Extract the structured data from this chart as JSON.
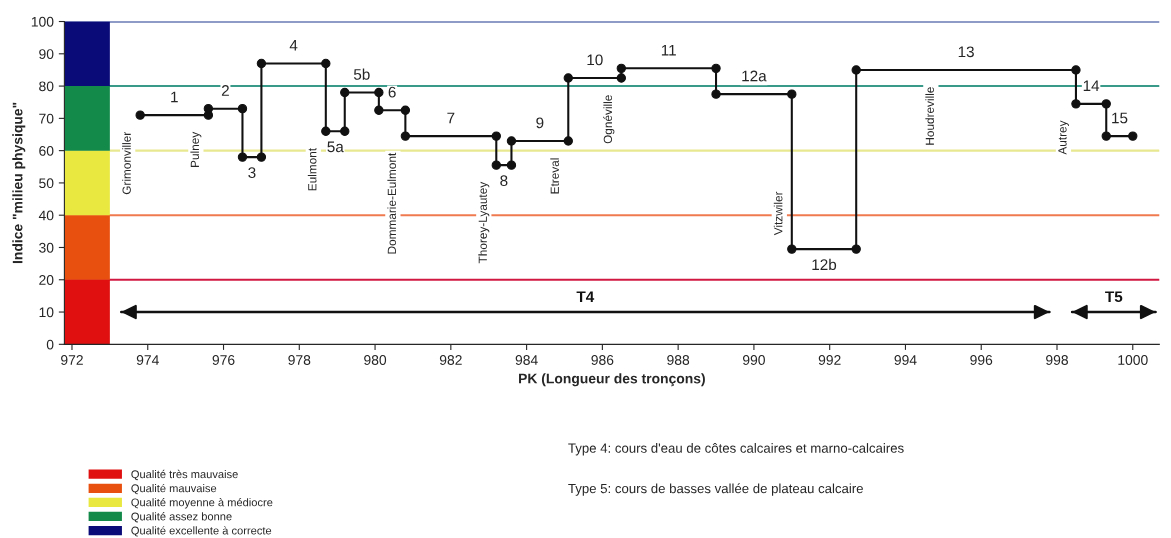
{
  "chart_data": {
    "type": "line",
    "xlabel": "PK (Longueur des tronçons)",
    "ylabel": "Indice \"milieu physique\"",
    "xlim": [
      971.8,
      1000.7
    ],
    "xticks": [
      972,
      974,
      976,
      978,
      980,
      982,
      984,
      986,
      988,
      990,
      992,
      994,
      996,
      998,
      1000
    ],
    "ylim": [
      0,
      100
    ],
    "yticks": [
      0,
      10,
      20,
      30,
      40,
      50,
      60,
      70,
      80,
      90,
      100
    ],
    "legend": "bottom left",
    "marker": "circle",
    "line_style": "solid",
    "stacked": true,
    "series": [
      {
        "type": "bar",
        "name": "Qualité très mauvaise",
        "color": "#e01010",
        "x": [
          972.4
        ],
        "values": [
          20
        ]
      },
      {
        "type": "bar",
        "name": "Qualité mauvaise",
        "color": "#e85010",
        "x": [
          972.4
        ],
        "values": [
          20
        ]
      },
      {
        "type": "bar",
        "name": "Qualité moyenne à médiocre",
        "color": "#e8e840",
        "x": [
          972.4
        ],
        "values": [
          20
        ]
      },
      {
        "type": "bar",
        "name": "Qualité assez bonne",
        "color": "#138a4a",
        "x": [
          972.4
        ],
        "values": [
          20
        ]
      },
      {
        "type": "bar",
        "name": "Qualité excellente à correcte",
        "color": "#0a0a78",
        "x": [
          972.4
        ],
        "values": [
          20
        ]
      },
      {
        "color": "#111111",
        "x": [
          973.8,
          975.6,
          975.6,
          976.5,
          976.5,
          977.0,
          977.0,
          978.7,
          978.7,
          979.2,
          979.2,
          980.1,
          980.1,
          980.8,
          980.8,
          983.2,
          983.2,
          983.6,
          983.6,
          985.1,
          985.1,
          986.5,
          986.5,
          989.0,
          989.0,
          991.0,
          991.0,
          992.7,
          992.7,
          998.5,
          998.5,
          999.3,
          999.3,
          1000.0
        ],
        "values": [
          71,
          71,
          73,
          73,
          58,
          58,
          87,
          87,
          66,
          66,
          78,
          78,
          72.5,
          72.5,
          64.5,
          64.5,
          55.5,
          55.5,
          63,
          63,
          82.5,
          82.5,
          85.5,
          85.5,
          77.5,
          77.5,
          29.5,
          29.5,
          85,
          85,
          74.5,
          74.5,
          64.5,
          64.5
        ]
      },
      {
        "name": "T4",
        "marker": "none",
        "color": "#111111",
        "x": [
          973.3,
          997.8
        ],
        "values": [
          10,
          10
        ]
      },
      {
        "name": "T5",
        "marker": "none",
        "color": "#111111",
        "x": [
          998.4,
          1000.6
        ],
        "values": [
          10,
          10
        ]
      }
    ],
    "ref_lines": [
      {
        "axis": "y",
        "value": 100,
        "color": "#203890"
      },
      {
        "axis": "y",
        "value": 80,
        "color": "#3a9a8a"
      },
      {
        "axis": "y",
        "value": 60,
        "color": "#e8e890"
      },
      {
        "axis": "y",
        "value": 40,
        "color": "#f07a50"
      },
      {
        "axis": "y",
        "value": 20,
        "color": "#d01840"
      }
    ],
    "annotations": [
      {
        "text": "1",
        "x": 974.7,
        "y": 71
      },
      {
        "text": "2",
        "x": 976.05,
        "y": 73
      },
      {
        "text": "3",
        "x": 976.75,
        "y": 58
      },
      {
        "text": "4",
        "x": 977.85,
        "y": 87
      },
      {
        "text": "5a",
        "x": 978.95,
        "y": 66
      },
      {
        "text": "5b",
        "x": 979.65,
        "y": 78
      },
      {
        "text": "6",
        "x": 980.45,
        "y": 72.5
      },
      {
        "text": "7",
        "x": 982.0,
        "y": 64.5
      },
      {
        "text": "8",
        "x": 983.4,
        "y": 55.5
      },
      {
        "text": "9",
        "x": 984.35,
        "y": 63
      },
      {
        "text": "10",
        "x": 985.8,
        "y": 82.5
      },
      {
        "text": "11",
        "x": 987.75,
        "y": 85.5
      },
      {
        "text": "12a",
        "x": 990.0,
        "y": 77.5
      },
      {
        "text": "12b",
        "x": 991.85,
        "y": 29.5
      },
      {
        "text": "13",
        "x": 995.6,
        "y": 85
      },
      {
        "text": "14",
        "x": 998.9,
        "y": 74.5
      },
      {
        "text": "15",
        "x": 999.65,
        "y": 64.5
      },
      {
        "text": "Grimonviller",
        "x": 973.8,
        "y": 71
      },
      {
        "text": "Pulney",
        "x": 975.6,
        "y": 71
      },
      {
        "text": "Eulmont",
        "x": 978.7,
        "y": 66
      },
      {
        "text": "Dommarie-Eulmont",
        "x": 980.8,
        "y": 64.5
      },
      {
        "text": "Thorey-Lyautey",
        "x": 983.2,
        "y": 55.5
      },
      {
        "text": "Etreval",
        "x": 985.1,
        "y": 63
      },
      {
        "text": "Ognéville",
        "x": 986.5,
        "y": 82.5
      },
      {
        "text": "Vitzwiler",
        "x": 991.0,
        "y": 29.5
      },
      {
        "text": "Houdreville",
        "x": 995.0,
        "y": 85
      },
      {
        "text": "Autrey",
        "x": 998.5,
        "y": 74.5
      },
      "Type 4: cours d'eau de côtes calcaires et marno-calcaires",
      "Type 5: cours de basses vallée de plateau calcaire"
    ]
  }
}
